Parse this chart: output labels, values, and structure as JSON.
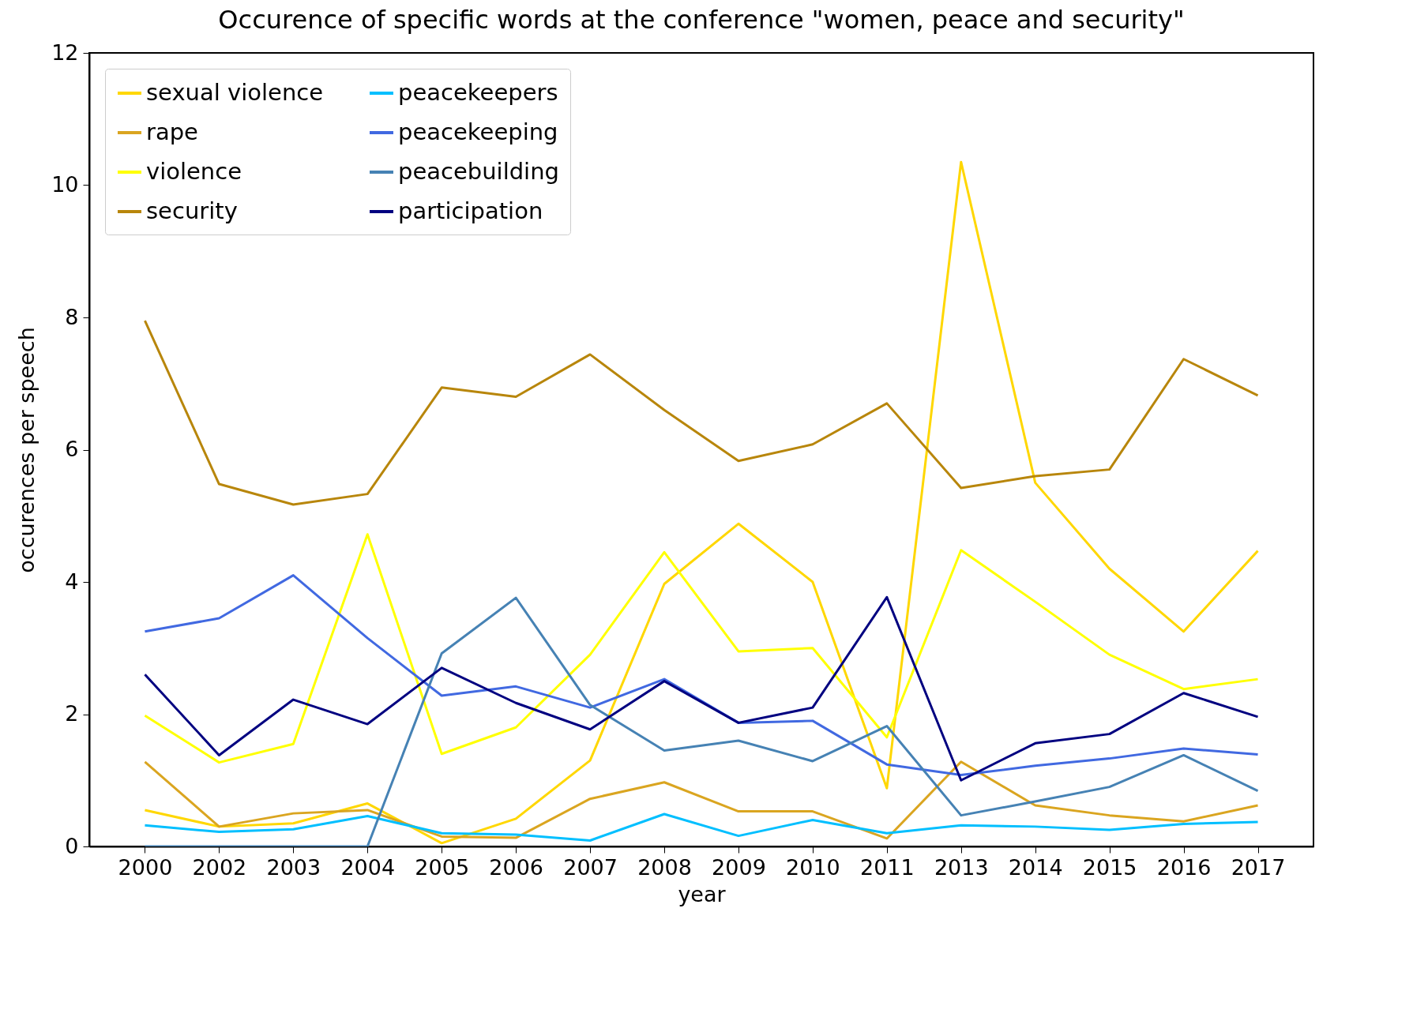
{
  "chart_data": {
    "type": "line",
    "title": "Occurence of specific words at the conference \"women, peace and security\"",
    "xlabel": "year",
    "ylabel": "occurences per speech",
    "categories": [
      "2000",
      "2002",
      "2003",
      "2004",
      "2005",
      "2006",
      "2007",
      "2008",
      "2009",
      "2010",
      "2011",
      "2013",
      "2014",
      "2015",
      "2016",
      "2017"
    ],
    "ylim": [
      0,
      12
    ],
    "yticks": [
      0,
      2,
      4,
      6,
      8,
      10,
      12
    ],
    "grid": false,
    "legend": "top left",
    "series": [
      {
        "name": "sexual violence",
        "color": "#ffd700",
        "values": [
          0.55,
          0.3,
          0.35,
          0.65,
          0.05,
          0.42,
          1.3,
          3.97,
          4.88,
          4.0,
          0.88,
          10.35,
          5.5,
          4.2,
          3.25,
          4.47
        ]
      },
      {
        "name": "rape",
        "color": "#daa520",
        "values": [
          1.28,
          0.3,
          0.5,
          0.55,
          0.15,
          0.13,
          0.72,
          0.97,
          0.53,
          0.53,
          0.12,
          1.28,
          0.62,
          0.47,
          0.38,
          0.62
        ]
      },
      {
        "name": "violence",
        "color": "#ffff00",
        "values": [
          1.98,
          1.27,
          1.55,
          4.72,
          1.4,
          1.8,
          2.9,
          4.45,
          2.95,
          3.0,
          1.65,
          4.48,
          3.7,
          2.9,
          2.38,
          2.53
        ]
      },
      {
        "name": "security",
        "color": "#b8860b",
        "values": [
          7.95,
          5.48,
          5.17,
          5.33,
          6.94,
          6.8,
          7.44,
          6.6,
          5.83,
          6.08,
          6.7,
          5.42,
          5.6,
          5.7,
          7.37,
          6.82
        ]
      },
      {
        "name": "peacekeepers",
        "color": "#00bfff",
        "values": [
          0.32,
          0.22,
          0.26,
          0.46,
          0.2,
          0.18,
          0.09,
          0.49,
          0.16,
          0.4,
          0.2,
          0.32,
          0.3,
          0.25,
          0.34,
          0.37
        ]
      },
      {
        "name": "peacekeeping",
        "color": "#4169e1",
        "values": [
          3.25,
          3.45,
          4.1,
          3.15,
          2.28,
          2.42,
          2.1,
          2.53,
          1.87,
          1.9,
          1.24,
          1.08,
          1.22,
          1.33,
          1.48,
          1.39
        ]
      },
      {
        "name": "peacebuilding",
        "color": "#4682b4",
        "values": [
          0,
          0,
          0,
          0,
          2.92,
          3.76,
          2.14,
          1.45,
          1.6,
          1.29,
          1.82,
          0.47,
          0.68,
          0.9,
          1.38,
          0.84
        ]
      },
      {
        "name": "participation",
        "color": "#000080",
        "values": [
          2.6,
          1.38,
          2.22,
          1.85,
          2.7,
          2.17,
          1.77,
          2.5,
          1.87,
          2.1,
          3.77,
          1.0,
          1.56,
          1.7,
          2.32,
          1.96
        ]
      }
    ]
  }
}
